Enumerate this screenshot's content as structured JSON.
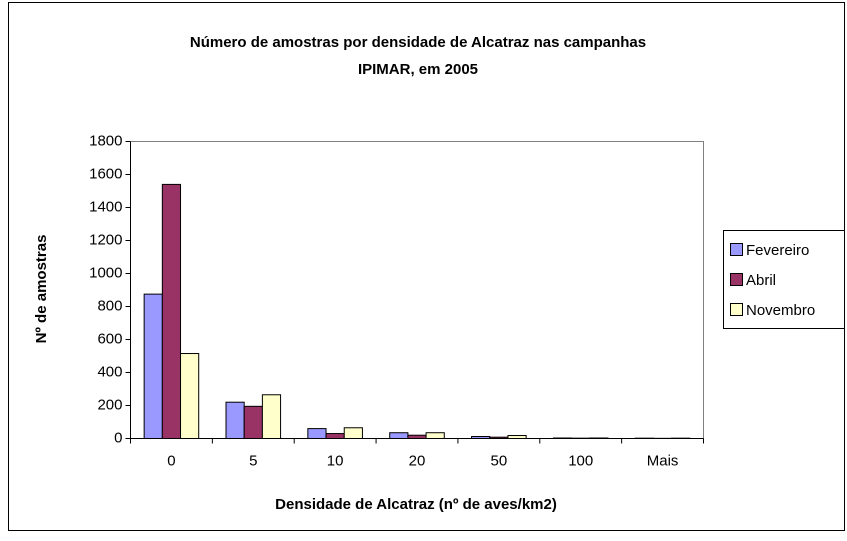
{
  "chart_data": {
    "type": "bar",
    "title": [
      "Número de amostras por densidade de Alcatraz nas campanhas",
      "IPIMAR, em 2005"
    ],
    "x_label": "Densidade de Alcatraz (nº de aves/km2)",
    "y_label": "Nº de amostras",
    "categories": [
      "0",
      "5",
      "10",
      "20",
      "50",
      "100",
      "Mais"
    ],
    "series": [
      {
        "name": "Fevereiro",
        "color": "#9999ff",
        "values": [
          875,
          220,
          60,
          35,
          12,
          3,
          2
        ]
      },
      {
        "name": "Abril",
        "color": "#993366",
        "values": [
          1540,
          195,
          30,
          20,
          8,
          2,
          1
        ]
      },
      {
        "name": "Novembro",
        "color": "#ffffcc",
        "values": [
          515,
          265,
          65,
          35,
          18,
          3,
          2
        ]
      }
    ],
    "ylim": [
      0,
      1800
    ],
    "yticks": [
      0,
      200,
      400,
      600,
      800,
      1000,
      1200,
      1400,
      1600,
      1800
    ],
    "grid": false,
    "legend": "right"
  }
}
